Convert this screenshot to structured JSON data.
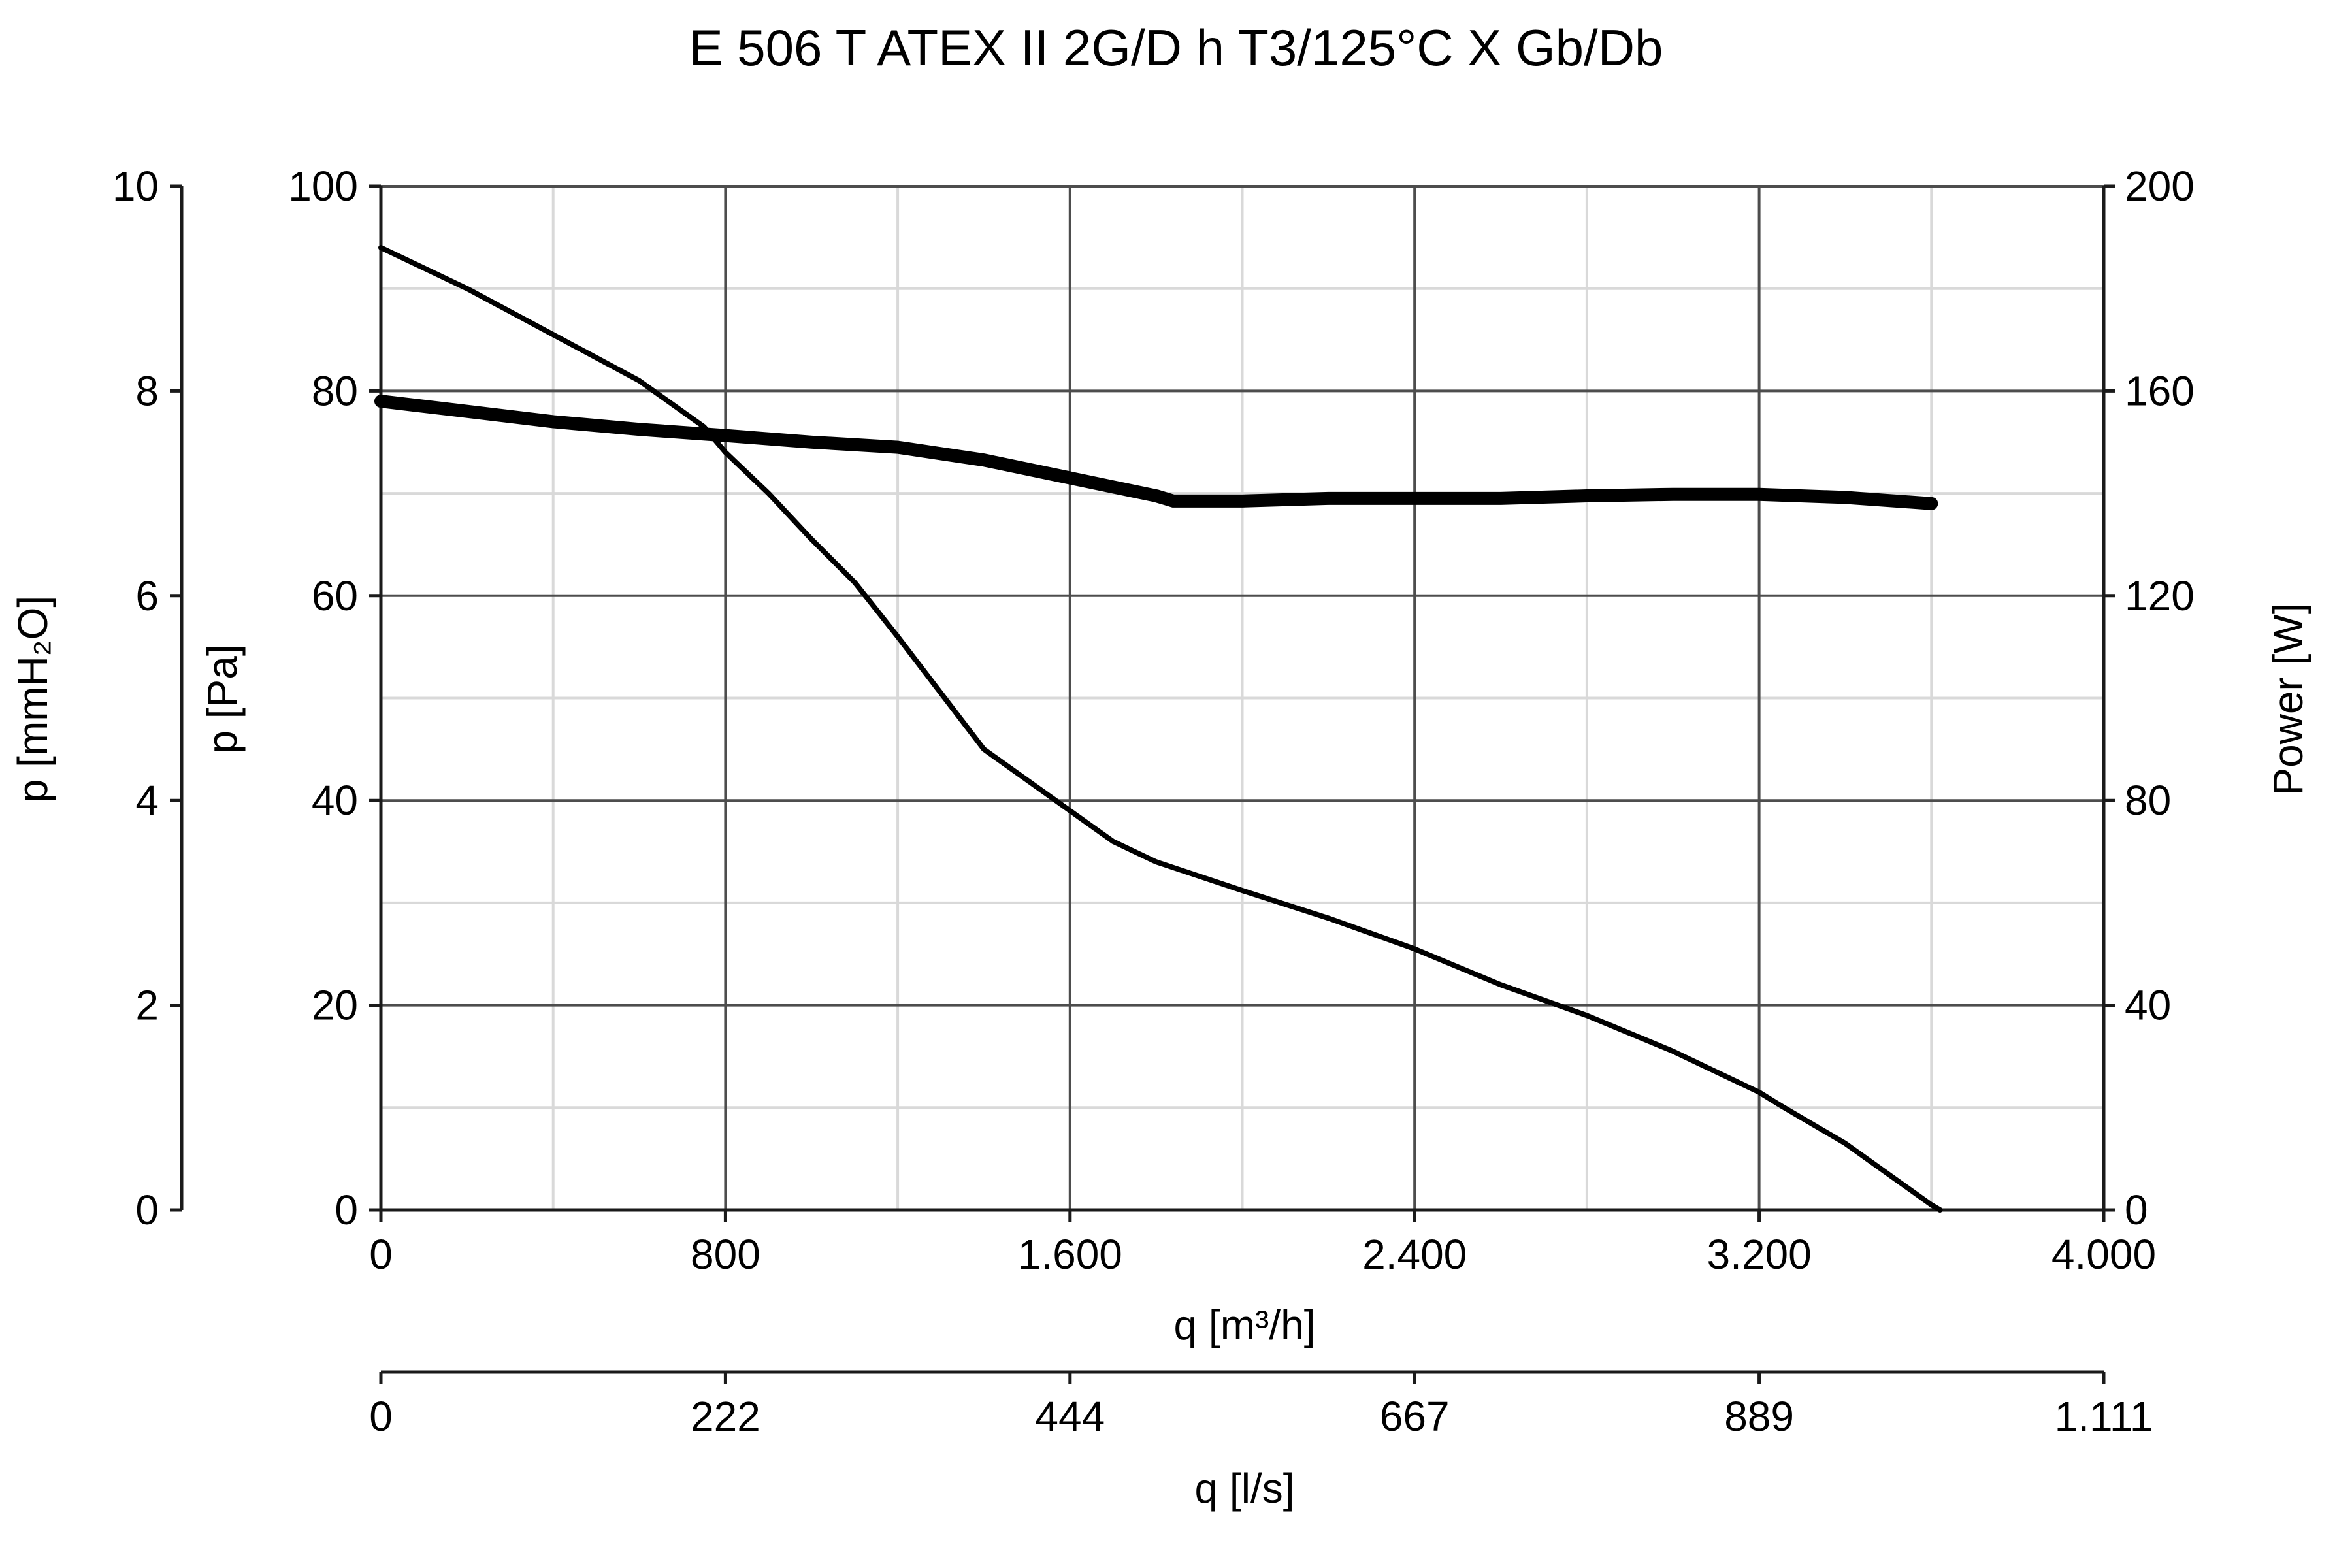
{
  "chart_data": {
    "type": "line",
    "title": "E 506 T ATEX II 2G/D h T3/125°C X Gb/Db",
    "x": {
      "label": "q [m³/h]",
      "range": [
        0,
        4000
      ],
      "ticks": [
        0,
        800,
        1600,
        2400,
        3200,
        4000
      ],
      "tick_labels": [
        "0",
        "800",
        "1.600",
        "2.400",
        "3.200",
        "4.000"
      ]
    },
    "x2": {
      "label": "q [l/s]",
      "tick_labels": [
        "0",
        "222",
        "444",
        "667",
        "889",
        "1.111"
      ]
    },
    "y": {
      "label": "p [Pa]",
      "range": [
        0,
        100
      ],
      "ticks": [
        0,
        20,
        40,
        60,
        80,
        100
      ],
      "tick_labels": [
        "0",
        "20",
        "40",
        "60",
        "80",
        "100"
      ]
    },
    "y_outer": {
      "label": "p [mmH₂O]",
      "range": [
        0,
        10
      ],
      "ticks": [
        0,
        2,
        4,
        6,
        8,
        10
      ],
      "tick_labels": [
        "0",
        "2",
        "4",
        "6",
        "8",
        "10"
      ]
    },
    "y_right": {
      "label": "Power [W]",
      "range": [
        0,
        200
      ],
      "ticks": [
        0,
        40,
        80,
        120,
        160,
        200
      ],
      "tick_labels": [
        "0",
        "40",
        "80",
        "120",
        "160",
        "200"
      ]
    },
    "grid": true,
    "series": [
      {
        "axis": "y",
        "style": "thin",
        "points": [
          [
            0,
            94
          ],
          [
            200,
            90
          ],
          [
            400,
            85.5
          ],
          [
            600,
            81
          ],
          [
            650,
            79.5
          ],
          [
            750,
            76.5
          ],
          [
            800,
            74
          ],
          [
            900,
            70
          ],
          [
            1000,
            65.5
          ],
          [
            1100,
            61.3
          ],
          [
            1200,
            56
          ],
          [
            1300,
            50.5
          ],
          [
            1400,
            45
          ],
          [
            1500,
            42
          ],
          [
            1600,
            39
          ],
          [
            1700,
            36
          ],
          [
            1800,
            34
          ],
          [
            2000,
            31.2
          ],
          [
            2200,
            28.5
          ],
          [
            2400,
            25.5
          ],
          [
            2600,
            22
          ],
          [
            2800,
            19
          ],
          [
            3000,
            15.5
          ],
          [
            3200,
            11.5
          ],
          [
            3250,
            10.2
          ],
          [
            3400,
            6.5
          ],
          [
            3500,
            3.5
          ],
          [
            3600,
            0.5
          ],
          [
            3620,
            0
          ]
        ]
      },
      {
        "axis": "y_right",
        "style": "thick",
        "points": [
          [
            0,
            158
          ],
          [
            200,
            156
          ],
          [
            400,
            154
          ],
          [
            600,
            152.5
          ],
          [
            800,
            151.3
          ],
          [
            1000,
            150
          ],
          [
            1200,
            149
          ],
          [
            1400,
            146.5
          ],
          [
            1600,
            143
          ],
          [
            1800,
            139.5
          ],
          [
            1840,
            138.5
          ],
          [
            2000,
            138.5
          ],
          [
            2200,
            139
          ],
          [
            2400,
            139
          ],
          [
            2600,
            139
          ],
          [
            2800,
            139.5
          ],
          [
            3000,
            139.8
          ],
          [
            3200,
            139.8
          ],
          [
            3400,
            139.2
          ],
          [
            3600,
            138
          ]
        ]
      }
    ]
  }
}
